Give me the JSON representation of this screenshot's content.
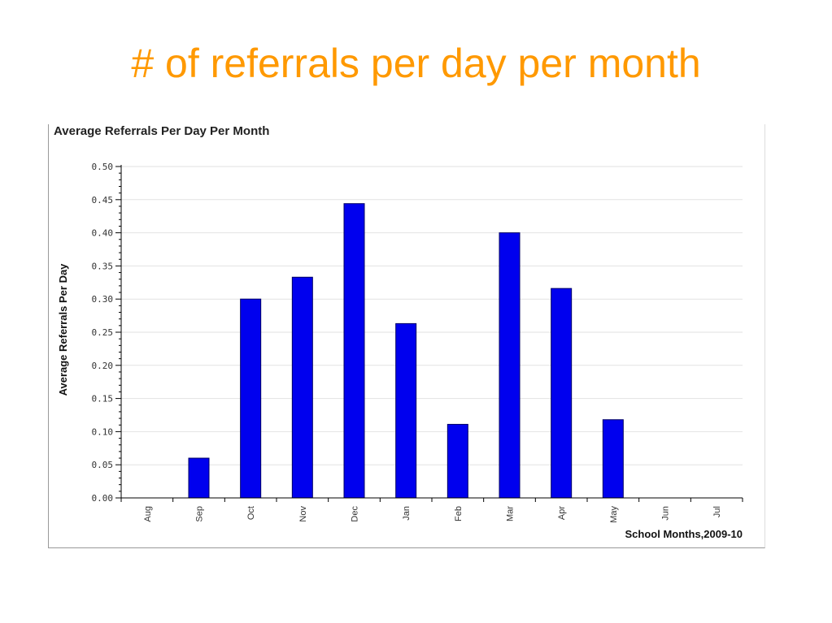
{
  "slide": {
    "title": "# of referrals per day per month"
  },
  "colors": {
    "title": "#ff9900",
    "bar": "#0000ee",
    "bar_outline": "#000066",
    "grid": "#e2e2e2"
  },
  "chart_data": {
    "type": "bar",
    "title": "Average Referrals Per Day Per Month",
    "xlabel": "School Months,2009-10",
    "ylabel": "Average Referrals Per Day",
    "categories": [
      "Aug",
      "Sep",
      "Oct",
      "Nov",
      "Dec",
      "Jan",
      "Feb",
      "Mar",
      "Apr",
      "May",
      "Jun",
      "Jul"
    ],
    "values": [
      0,
      0.06,
      0.3,
      0.333,
      0.444,
      0.263,
      0.111,
      0.4,
      0.316,
      0.118,
      0,
      0
    ],
    "ylim": [
      0,
      0.5
    ],
    "yticks": [
      "0.00",
      "0.05",
      "0.10",
      "0.15",
      "0.20",
      "0.25",
      "0.30",
      "0.35",
      "0.40",
      "0.45",
      "0.50"
    ],
    "grid": true,
    "legend": "none"
  }
}
